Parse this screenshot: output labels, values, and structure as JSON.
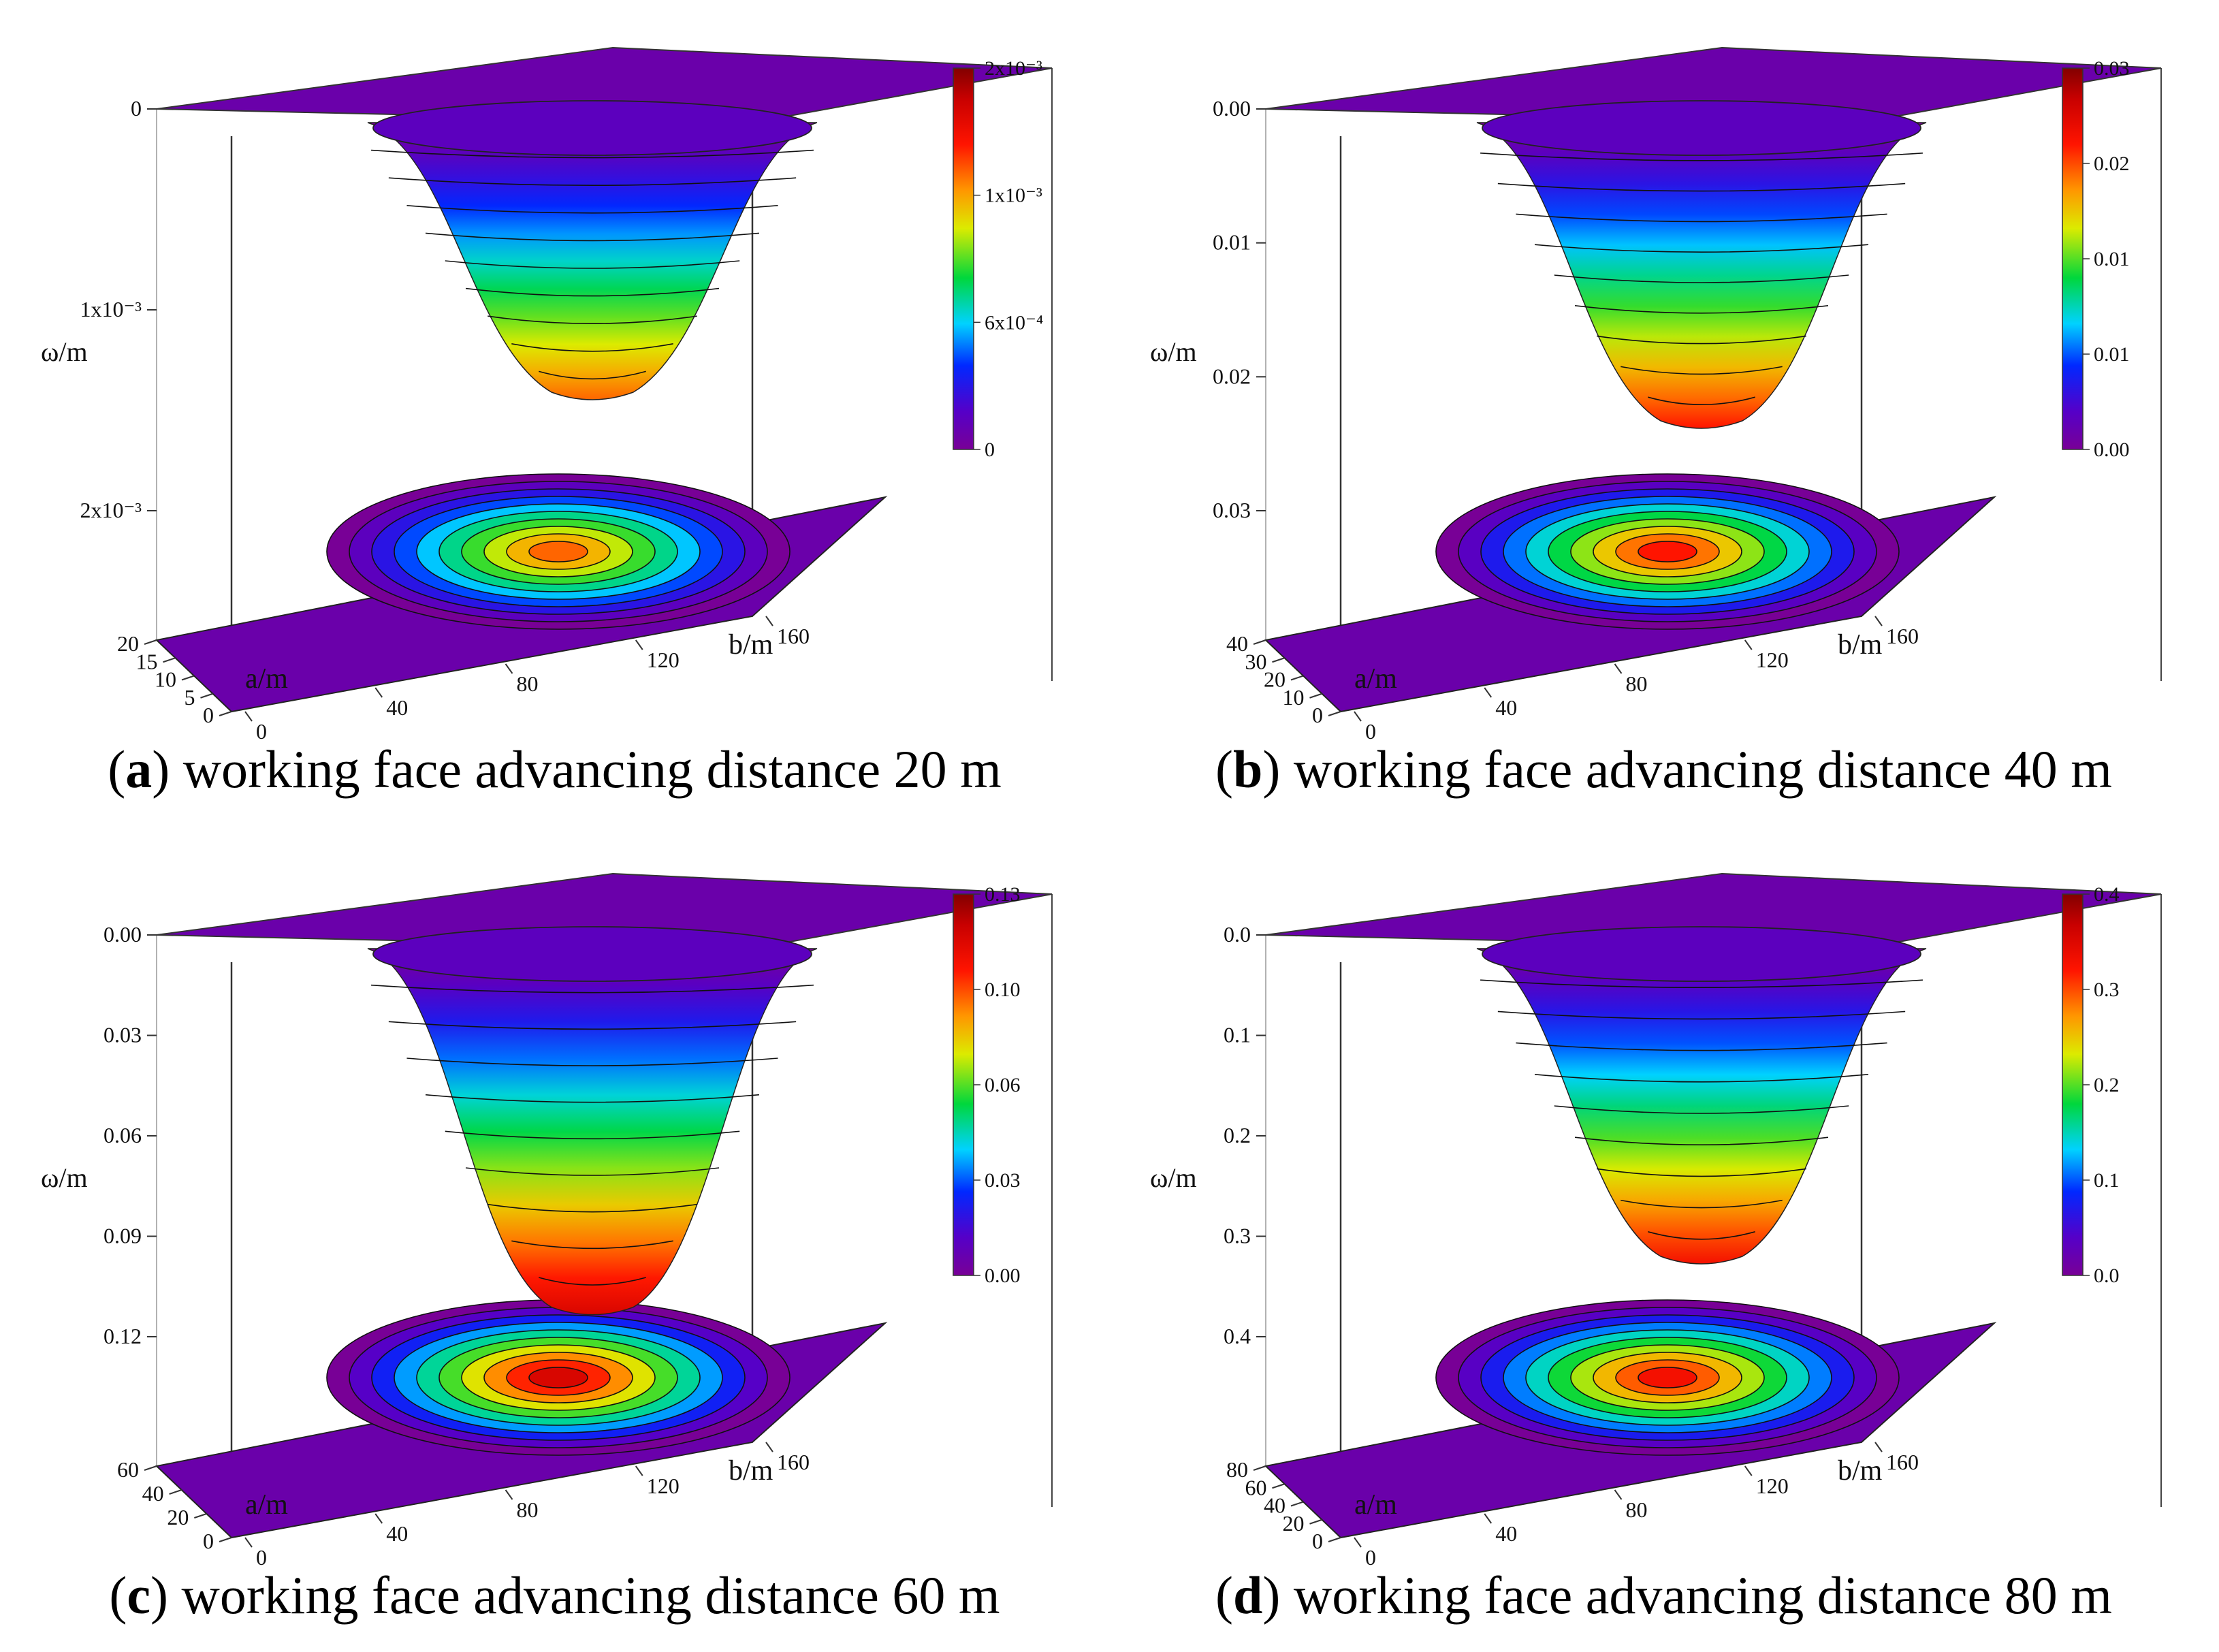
{
  "chart_data": [
    {
      "type": "surface3d",
      "panel_label": "a",
      "caption": "working face advancing distance 20 m",
      "z_label": "ω/m",
      "x_label": "a/m",
      "y_label": "b/m",
      "x_ticks": [
        "0",
        "5",
        "10",
        "15",
        "20"
      ],
      "y_ticks": [
        "0",
        "40",
        "80",
        "120",
        "160"
      ],
      "z_ticks": [
        "0",
        "1x10⁻³",
        "2x10⁻³"
      ],
      "x_range": [
        0,
        20
      ],
      "y_range": [
        0,
        160
      ],
      "z_range": [
        0,
        0.002
      ],
      "max_subsidence": 0.00145,
      "colorbar_ticks": [
        "2x10⁻³",
        "1x10⁻³",
        "6x10⁻⁴",
        "0"
      ],
      "colorbar_range": [
        0,
        0.002
      ]
    },
    {
      "type": "surface3d",
      "panel_label": "b",
      "caption": "working face advancing distance 40 m",
      "z_label": "ω/m",
      "x_label": "a/m",
      "y_label": "b/m",
      "x_ticks": [
        "0",
        "10",
        "20",
        "30",
        "40"
      ],
      "y_ticks": [
        "0",
        "40",
        "80",
        "120",
        "160"
      ],
      "z_ticks": [
        "0.00",
        "0.01",
        "0.02",
        "0.03"
      ],
      "x_range": [
        0,
        40
      ],
      "y_range": [
        0,
        160
      ],
      "z_range": [
        0,
        0.03
      ],
      "max_subsidence": 0.024,
      "colorbar_ticks": [
        "0.03",
        "0.02",
        "0.01",
        "0.01",
        "0.00"
      ],
      "colorbar_range": [
        0,
        0.03
      ]
    },
    {
      "type": "surface3d",
      "panel_label": "c",
      "caption": "working face advancing distance 60 m",
      "z_label": "ω/m",
      "x_label": "a/m",
      "y_label": "b/m",
      "x_ticks": [
        "0",
        "20",
        "40",
        "60"
      ],
      "y_ticks": [
        "0",
        "40",
        "80",
        "120",
        "160"
      ],
      "z_ticks": [
        "0.00",
        "0.03",
        "0.06",
        "0.09",
        "0.12"
      ],
      "x_range": [
        0,
        60
      ],
      "y_range": [
        0,
        160
      ],
      "z_range": [
        0,
        0.12
      ],
      "max_subsidence": 0.115,
      "colorbar_ticks": [
        "0.13",
        "0.10",
        "0.06",
        "0.03",
        "0.00"
      ],
      "colorbar_range": [
        0,
        0.13
      ]
    },
    {
      "type": "surface3d",
      "panel_label": "d",
      "caption": "working face advancing distance 80 m",
      "z_label": "ω/m",
      "x_label": "a/m",
      "y_label": "b/m",
      "x_ticks": [
        "0",
        "20",
        "40",
        "60",
        "80"
      ],
      "y_ticks": [
        "0",
        "40",
        "80",
        "120",
        "160"
      ],
      "z_ticks": [
        "0.0",
        "0.1",
        "0.2",
        "0.3",
        "0.4"
      ],
      "x_range": [
        0,
        80
      ],
      "y_range": [
        0,
        160
      ],
      "z_range": [
        0,
        0.4
      ],
      "max_subsidence": 0.33,
      "colorbar_ticks": [
        "0.4",
        "0.3",
        "0.2",
        "0.1",
        "0.0"
      ],
      "colorbar_range": [
        0,
        0.4
      ]
    }
  ]
}
